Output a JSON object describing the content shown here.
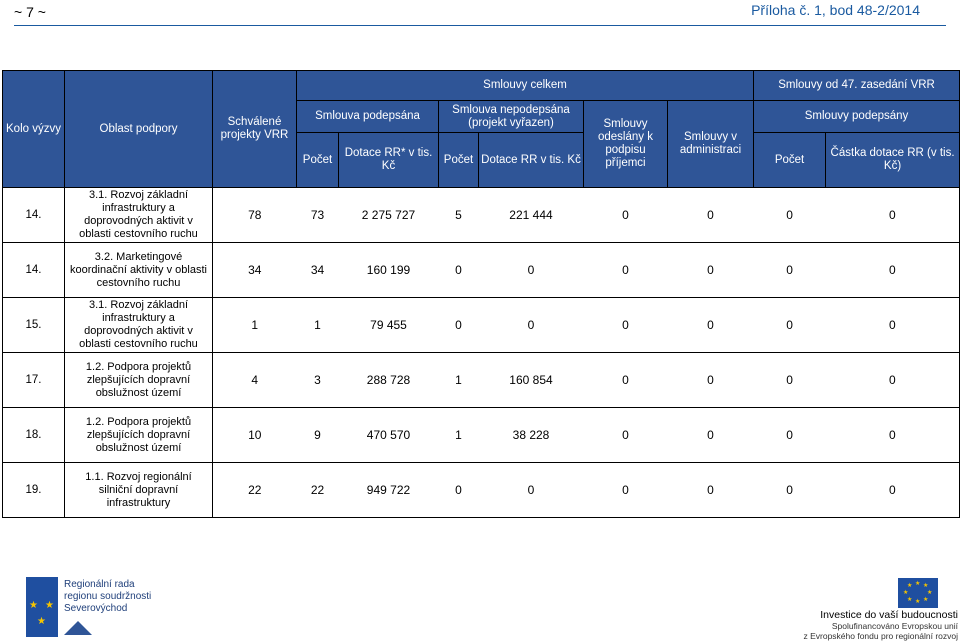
{
  "page": {
    "number": "~ 7 ~",
    "annex": "Příloha č. 1, bod 48-2/2014"
  },
  "table": {
    "headers": {
      "kolo": "Kolo výzvy",
      "oblast": "Oblast podpory",
      "schvalene": "Schválené projekty VRR",
      "celkem": "Smlouvy celkem",
      "od47": "Smlouvy od 47. zasedání VRR",
      "podepsana": "Smlouva podepsána",
      "nepodepsana": "Smlouva nepodepsána (projekt vyřazen)",
      "odeslany": "Smlouvy odeslány k podpisu příjemci",
      "administraci": "Smlouvy v administraci",
      "podepsany": "Smlouvy podepsány",
      "pocet1": "Počet",
      "dotace_rr_star": "Dotace RR* v tis. Kč",
      "pocet2": "Počet",
      "dotace_rr": "Dotace RR v tis. Kč",
      "pocet3": "Počet",
      "castka": "Částka dotace RR (v tis. Kč)"
    },
    "rows": [
      {
        "kolo": "14.",
        "oblast": "3.1. Rozvoj základní infrastruktury a doprovodných aktivit v oblasti cestovního ruchu",
        "values": [
          "78",
          "73",
          "2 275 727",
          "5",
          "221 444",
          "0",
          "0",
          "0",
          "0"
        ]
      },
      {
        "kolo": "14.",
        "oblast": "3.2. Marketingové koordinační aktivity v oblasti cestovního ruchu",
        "values": [
          "34",
          "34",
          "160 199",
          "0",
          "0",
          "0",
          "0",
          "0",
          "0"
        ]
      },
      {
        "kolo": "15.",
        "oblast": "3.1. Rozvoj základní infrastruktury a doprovodných aktivit v oblasti cestovního ruchu",
        "values": [
          "1",
          "1",
          "79 455",
          "0",
          "0",
          "0",
          "0",
          "0",
          "0"
        ]
      },
      {
        "kolo": "17.",
        "oblast": "1.2. Podpora projektů zlepšujících dopravní obslužnost území",
        "values": [
          "4",
          "3",
          "288 728",
          "1",
          "160 854",
          "0",
          "0",
          "0",
          "0"
        ]
      },
      {
        "kolo": "18.",
        "oblast": "1.2. Podpora projektů zlepšujících dopravní obslužnost území",
        "values": [
          "10",
          "9",
          "470 570",
          "1",
          "38 228",
          "0",
          "0",
          "0",
          "0"
        ]
      },
      {
        "kolo": "19.",
        "oblast": "1.1. Rozvoj regionální silniční dopravní infrastruktury",
        "values": [
          "22",
          "22",
          "949 722",
          "0",
          "0",
          "0",
          "0",
          "0",
          "0"
        ]
      }
    ]
  },
  "footer": {
    "left_logo": {
      "line1": "Regionální rada",
      "line2": "regionu soudržnosti",
      "line3": "Severovýchod"
    },
    "right_logo": {
      "line1": "Investice do vaší budoucnosti",
      "line2": "Spolufinancováno Evropskou unií",
      "line3": "z Evropského fondu pro regionální rozvoj"
    },
    "colors": {
      "header_blue": "#2f5597",
      "flag_blue": "#1f4fa0",
      "star_yellow": "#f5c400"
    }
  }
}
